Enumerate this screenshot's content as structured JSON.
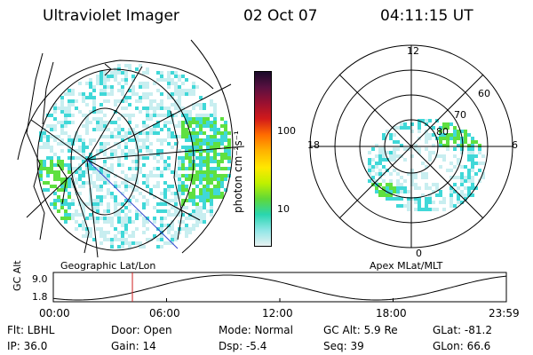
{
  "header": {
    "instrument": "Ultraviolet Imager",
    "date": "02 Oct 07",
    "time": "04:11:15 UT"
  },
  "colorbar": {
    "label": "photon cm⁻²s⁻¹",
    "ticks": [
      "100",
      "10"
    ],
    "colors": [
      "#1a0a2a",
      "#5a1040",
      "#9a1030",
      "#d21a1a",
      "#ff6a00",
      "#ffb000",
      "#ffe800",
      "#bff000",
      "#5fd838",
      "#29d6b0",
      "#8fe6e6",
      "#e8f2f2"
    ]
  },
  "left_map": {
    "label": "Geographic Lat/Lon",
    "colors": {
      "glow": "#40d8d8",
      "bright": "#5fe040",
      "faint": "#c8eef0"
    }
  },
  "right_map": {
    "label": "Apex MLat/MLT",
    "mlt_labels": {
      "top": "12",
      "left": "18",
      "right": "6",
      "bottom": "0"
    },
    "lat_labels": [
      "60",
      "70",
      "80"
    ]
  },
  "altitude_plot": {
    "ylabel": "GC Alt",
    "yticks": [
      "9.0",
      "1.8"
    ],
    "xticks": [
      "00:00",
      "06:00",
      "12:00",
      "18:00",
      "23:59"
    ],
    "marker_time_hours": 4.19,
    "marker_color": "#d02020"
  },
  "status": {
    "row1": {
      "flt": "Flt: LBHL",
      "door": "Door: Open",
      "mode": "Mode: Normal",
      "gcalt": "GC Alt: 5.9 Re",
      "glat": "GLat: -81.2"
    },
    "row2": {
      "ip": "IP: 36.0",
      "gain": "Gain: 14",
      "dsp": "Dsp:   -5.4",
      "seq": "Seq: 39",
      "glon": "GLon:  66.6"
    }
  }
}
